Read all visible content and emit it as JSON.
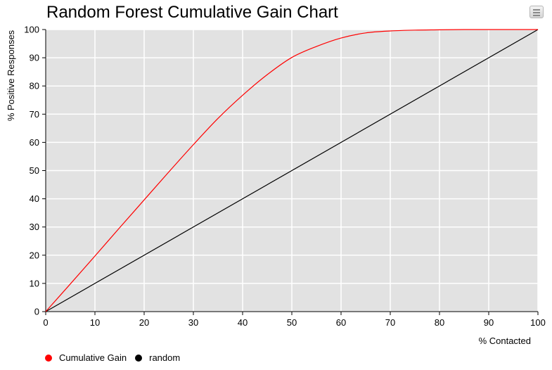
{
  "chart_data": {
    "type": "line",
    "title": "Random Forest Cumulative Gain Chart",
    "xlabel": "% Contacted",
    "ylabel": "% Positive Responses",
    "xlim": [
      0,
      100
    ],
    "ylim": [
      0,
      100
    ],
    "xticks": [
      0,
      10,
      20,
      30,
      40,
      50,
      60,
      70,
      80,
      90,
      100
    ],
    "yticks": [
      0,
      10,
      20,
      30,
      40,
      50,
      60,
      70,
      80,
      90,
      100
    ],
    "grid": true,
    "plot_background": "#e2e2e2",
    "legend_position": "bottom-left",
    "series": [
      {
        "name": "Cumulative Gain",
        "color": "#ff0000",
        "x": [
          0,
          5,
          10,
          15,
          20,
          25,
          30,
          35,
          40,
          45,
          50,
          55,
          60,
          65,
          70,
          75,
          80,
          85,
          90,
          95,
          100
        ],
        "y": [
          0,
          9.8,
          19.7,
          29.7,
          39.6,
          49.5,
          59.2,
          68.5,
          76.7,
          84.0,
          90.1,
          94.0,
          97.0,
          98.8,
          99.5,
          99.8,
          99.9,
          100,
          100,
          100,
          100
        ]
      },
      {
        "name": "random",
        "color": "#000000",
        "x": [
          0,
          100
        ],
        "y": [
          0,
          100
        ]
      }
    ]
  },
  "toolbar": {
    "menu_icon": "hamburger-menu-icon"
  }
}
